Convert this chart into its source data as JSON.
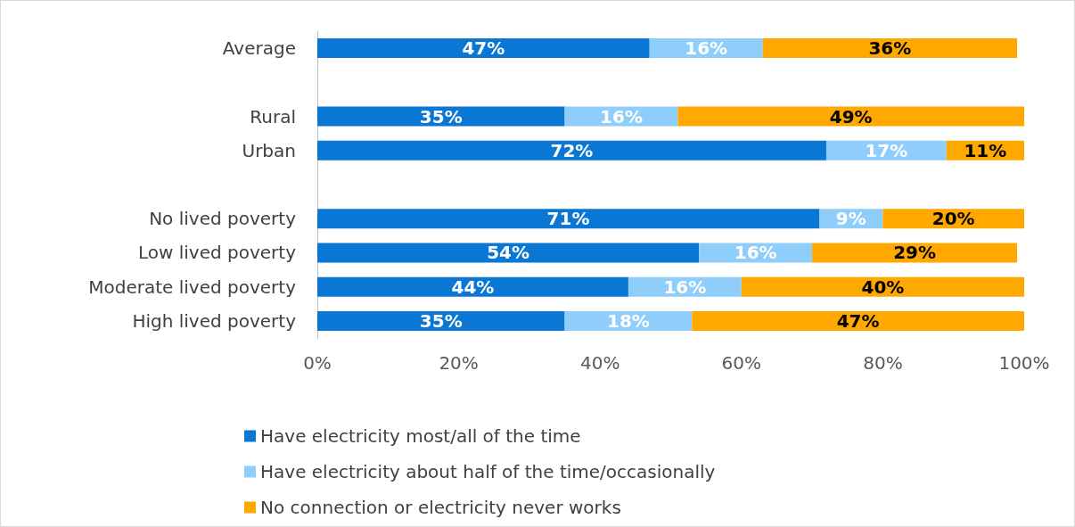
{
  "chart_data": {
    "type": "bar",
    "orientation": "horizontal",
    "stacked": true,
    "categories": [
      "Average",
      null,
      "Rural",
      "Urban",
      null,
      "No lived poverty",
      "Low lived poverty",
      "Moderate lived poverty",
      "High lived poverty"
    ],
    "series": [
      {
        "name": "Have electricity most/all of the time",
        "color": "#0a77d5",
        "values": [
          47,
          null,
          35,
          72,
          null,
          71,
          54,
          44,
          35
        ],
        "value_labels": [
          "47%",
          null,
          "35%",
          "72%",
          null,
          "71%",
          "54%",
          "44%",
          "35%"
        ]
      },
      {
        "name": "Have electricity about half of the time/occasionally",
        "color": "#8fcdfa",
        "values": [
          16,
          null,
          16,
          17,
          null,
          9,
          16,
          16,
          18
        ],
        "value_labels": [
          "16%",
          null,
          "16%",
          "17%",
          null,
          "9%",
          "16%",
          "16%",
          "18%"
        ]
      },
      {
        "name": "No connection or electricity never works",
        "color": "#ffa800",
        "values": [
          36,
          null,
          49,
          11,
          null,
          20,
          29,
          40,
          47
        ],
        "value_labels": [
          "36%",
          null,
          "49%",
          "11%",
          null,
          "20%",
          "29%",
          "40%",
          "47%"
        ]
      }
    ],
    "xlim": [
      0,
      100
    ],
    "xticks": [
      {
        "value": 0,
        "label": "0%"
      },
      {
        "value": 20,
        "label": "20%"
      },
      {
        "value": 40,
        "label": "40%"
      },
      {
        "value": 60,
        "label": "60%"
      },
      {
        "value": 80,
        "label": "80%"
      },
      {
        "value": 100,
        "label": "100%"
      }
    ],
    "grid": false,
    "legend": "bottom"
  }
}
